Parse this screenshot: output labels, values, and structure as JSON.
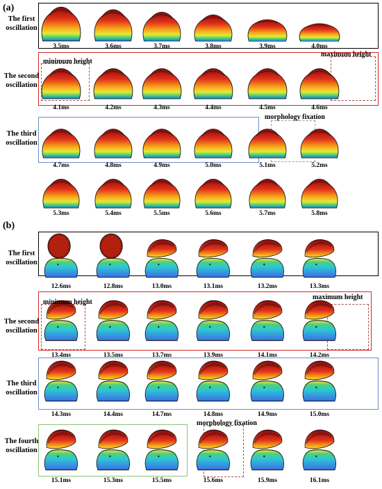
{
  "figure": {
    "panel_a": {
      "label": "(a)",
      "rows": [
        {
          "label": "The first\noscillation",
          "times": [
            "3.5ms",
            "3.6ms",
            "3.7ms",
            "3.8ms",
            "3.9ms",
            "4.0ms"
          ]
        },
        {
          "label": "The second\noscillation",
          "times": [
            "4.1ms",
            "4.2ms",
            "4.3ms",
            "4.4ms",
            "4.5ms",
            "4.6ms"
          ],
          "notes": [
            "minimum height",
            "maximum height"
          ]
        },
        {
          "label": "The third\noscillation",
          "times": [
            "4.7ms",
            "4.8ms",
            "4.9ms",
            "5.0ms",
            "5.1ms",
            "5.2ms"
          ],
          "notes": [
            "morphology fixation"
          ]
        },
        {
          "label": "",
          "times": [
            "5.3ms",
            "5.4ms",
            "5.5ms",
            "5.6ms",
            "5.7ms",
            "5.8ms"
          ]
        }
      ]
    },
    "panel_b": {
      "label": "(b)",
      "rows": [
        {
          "label": "The first\noscillation",
          "times": [
            "12.6ms",
            "12.8ms",
            "13.0ms",
            "13.1ms",
            "13.2ms",
            "13.3ms"
          ]
        },
        {
          "label": "The second\noscillation",
          "times": [
            "13.4ms",
            "13.5ms",
            "13.7ms",
            "13.9ms",
            "14.1ms",
            "14.2ms"
          ],
          "notes": [
            "minimum height",
            "maximum height"
          ]
        },
        {
          "label": "The third\noscillation",
          "times": [
            "14.3ms",
            "14.4ms",
            "14.7ms",
            "14.8ms",
            "14.9ms",
            "15.0ms"
          ]
        },
        {
          "label": "The fourth\noscillation",
          "times": [
            "15.1ms",
            "15.3ms",
            "15.5ms",
            "15.6ms",
            "15.9ms",
            "16.1ms"
          ],
          "notes": [
            "morphology fixation"
          ]
        }
      ]
    }
  },
  "colors": {
    "box_black": "#000000",
    "box_red": "#d62728",
    "box_blue": "#6a8fc9",
    "box_green": "#8dc27a",
    "dash_brown": "#a0524d",
    "dash_gray": "#8aa0a8"
  }
}
